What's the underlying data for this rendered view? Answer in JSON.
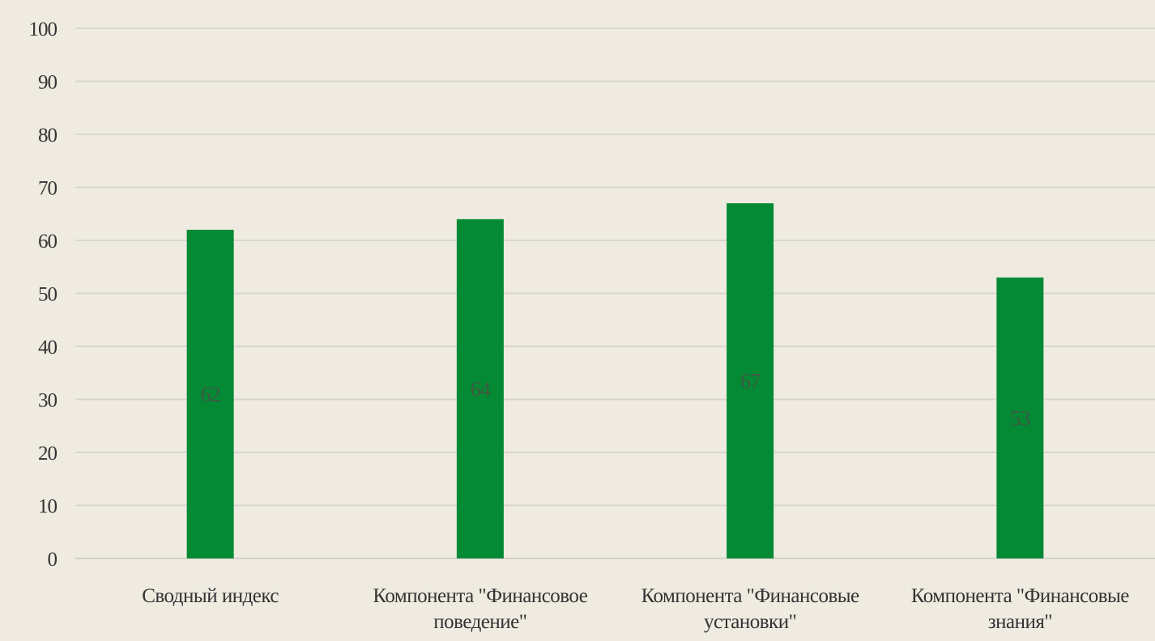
{
  "chart_data": {
    "type": "bar",
    "categories": [
      [
        "Сводный индекс"
      ],
      [
        "Компонента \"Финансовое",
        "поведение\""
      ],
      [
        "Компонента \"Финансовые",
        "установки\""
      ],
      [
        "Компонента \"Финансовые",
        "знания\""
      ]
    ],
    "values": [
      62,
      64,
      67,
      53
    ],
    "data_labels": [
      "62",
      "64",
      "67",
      "53"
    ],
    "yticks": [
      "0",
      "10",
      "20",
      "30",
      "40",
      "50",
      "60",
      "70",
      "80",
      "90",
      "100"
    ],
    "ylim": [
      0,
      100
    ],
    "title": "",
    "xlabel": "",
    "ylabel": "",
    "grid": true,
    "bar_color": "#048a35",
    "background": "#efebe1"
  }
}
